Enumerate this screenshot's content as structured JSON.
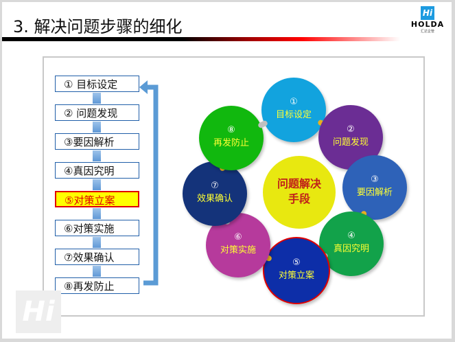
{
  "title": "3. 解决问题步骤的细化",
  "logo": {
    "brand": "HOLDA",
    "sub": "汇达企管",
    "mark": "Hi"
  },
  "steps": [
    "① 目标设定",
    "② 问题发现",
    "③要因解析",
    "④真因究明",
    "⑤对策立案",
    "⑥对策实施",
    "⑦效果确认",
    "⑧再发防止"
  ],
  "highlighted_step": 4,
  "cycle": {
    "center": [
      "问题解决",
      "手段"
    ],
    "nodes": [
      {
        "num": "①",
        "label": "目标设定",
        "color": "#12a3de"
      },
      {
        "num": "②",
        "label": "问题发现",
        "color": "#6b2d94"
      },
      {
        "num": "③",
        "label": "要因解析",
        "color": "#2e62b8"
      },
      {
        "num": "④",
        "label": "真因究明",
        "color": "#12a24a"
      },
      {
        "num": "⑤",
        "label": "对策立案",
        "color": "#0d2ea8"
      },
      {
        "num": "⑥",
        "label": "对策实施",
        "color": "#b63a9c"
      },
      {
        "num": "⑦",
        "label": "效果确认",
        "color": "#14337a"
      },
      {
        "num": "⑧",
        "label": "再发防止",
        "color": "#11b80e"
      }
    ]
  }
}
